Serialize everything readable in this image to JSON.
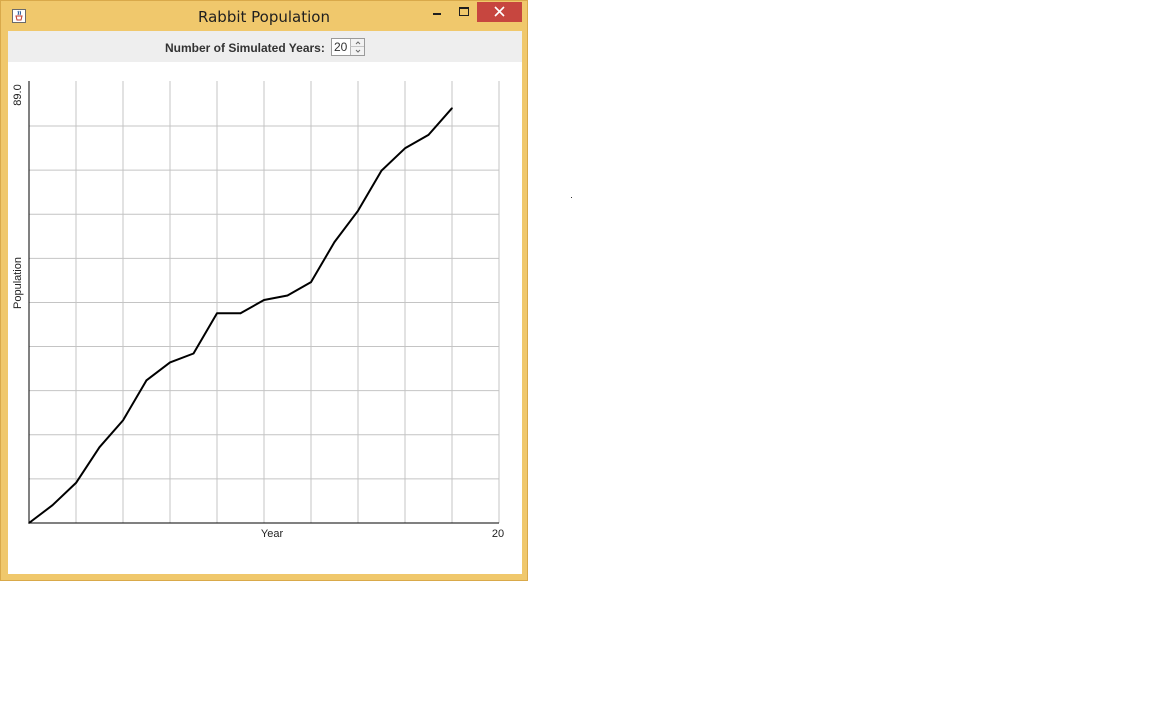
{
  "window": {
    "title": "Rabbit Population",
    "icons": {
      "app": "java-cup-icon",
      "minimize": "minimize-icon",
      "maximize": "maximize-icon",
      "close": "close-icon"
    },
    "colors": {
      "frame": "#f0c86c",
      "close": "#c7463f"
    }
  },
  "controls": {
    "years_label": "Number of Simulated Years:",
    "years_value": "20"
  },
  "chart_data": {
    "type": "line",
    "xlabel": "Year",
    "ylabel": "Population",
    "x_tick_label": "20",
    "y_tick_label": "89.0",
    "xlim": [
      0,
      20
    ],
    "ylim": [
      0,
      89
    ],
    "grid": true,
    "x": [
      0,
      1,
      2,
      3,
      4,
      5,
      6,
      7,
      8,
      9,
      10,
      11,
      12,
      13,
      14,
      15,
      16,
      17,
      18
    ],
    "values": [
      0,
      4,
      9,
      17,
      23,
      32,
      36,
      38,
      47,
      47,
      50,
      51,
      54,
      63,
      70,
      79,
      84,
      87,
      93
    ],
    "line_color": "#000000"
  }
}
